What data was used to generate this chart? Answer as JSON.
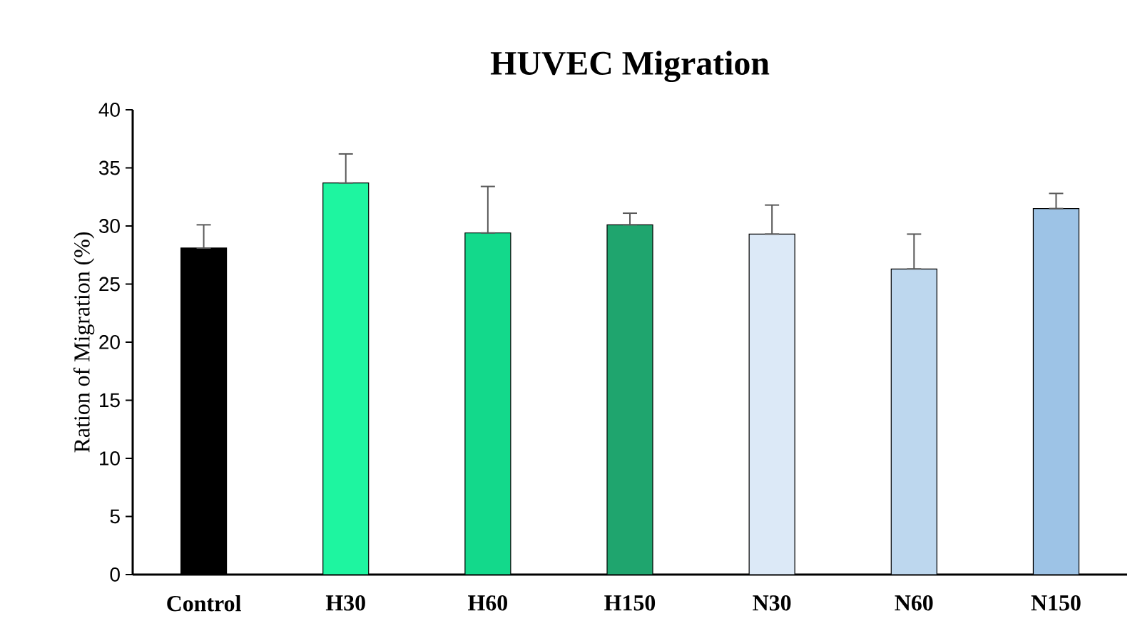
{
  "chart_data": {
    "type": "bar",
    "title": "HUVEC Migration",
    "ylabel": "Ration of Migration (%)",
    "categories": [
      "Control",
      "H30",
      "H60",
      "H150",
      "N30",
      "N60",
      "N150"
    ],
    "values": [
      28.1,
      33.7,
      29.4,
      30.1,
      29.3,
      26.3,
      31.5
    ],
    "errors": [
      [
        28.1,
        30.1
      ],
      [
        33.7,
        36.2
      ],
      [
        29.4,
        33.4
      ],
      [
        30.1,
        31.1
      ],
      [
        29.3,
        31.8
      ],
      [
        26.3,
        29.3
      ],
      [
        31.5,
        32.8
      ]
    ],
    "colors": [
      "#000000",
      "#1ef5a0",
      "#13d98b",
      "#1fa56e",
      "#dce9f7",
      "#bdd7ee",
      "#9dc3e6"
    ],
    "ylim": [
      0,
      40
    ],
    "yticks": [
      0,
      5,
      10,
      15,
      20,
      25,
      30,
      35,
      40
    ],
    "grid": false
  }
}
